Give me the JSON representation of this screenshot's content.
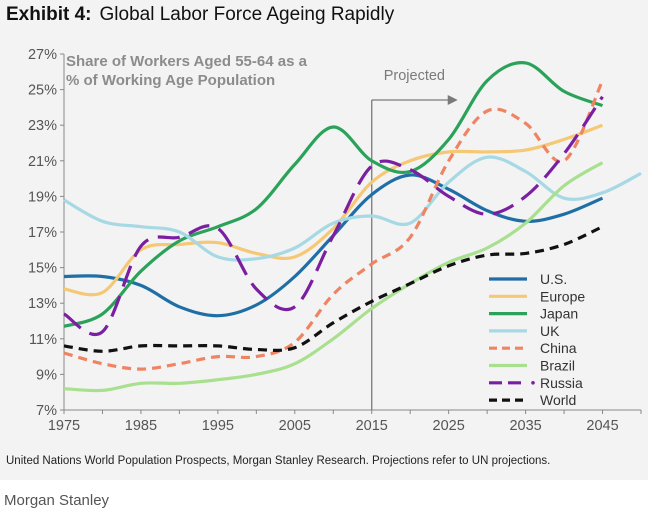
{
  "header": {
    "exhibit_label": "Exhibit 4:",
    "title": "Global Labor Force Ageing Rapidly"
  },
  "footnote": "United Nations World Population Prospects, Morgan Stanley Research. Projections refer to UN projections.",
  "brand": "Morgan Stanley",
  "chart_data": {
    "type": "line",
    "title": "",
    "subtitle": [
      "Share of Workers Aged 55-64 as a",
      "% of Working Age Population"
    ],
    "xlabel": "",
    "ylabel": "",
    "xlim": [
      1975,
      2050
    ],
    "ylim": [
      7,
      27
    ],
    "x_ticks": [
      1975,
      1985,
      1995,
      2005,
      2015,
      2025,
      2035,
      2045
    ],
    "y_ticks": [
      "7%",
      "9%",
      "11%",
      "13%",
      "15%",
      "17%",
      "19%",
      "21%",
      "23%",
      "25%",
      "27%"
    ],
    "y_tick_values": [
      7,
      9,
      11,
      13,
      15,
      17,
      19,
      21,
      23,
      25,
      27
    ],
    "grid": false,
    "legend_position": "bottom-right",
    "annotation": {
      "text": "Projected",
      "x": 2015
    },
    "series": [
      {
        "name": "U.S.",
        "color": "#1f6fa6",
        "dash": "solid",
        "x": [
          1975,
          1980,
          1985,
          1990,
          1995,
          2000,
          2005,
          2010,
          2015,
          2020,
          2025,
          2030,
          2035,
          2040,
          2045
        ],
        "values": [
          14.5,
          14.5,
          14.0,
          12.8,
          12.3,
          12.9,
          14.5,
          16.8,
          19.1,
          20.2,
          19.4,
          18.2,
          17.6,
          18.0,
          18.9
        ]
      },
      {
        "name": "Europe",
        "color": "#f5c875",
        "dash": "solid",
        "x": [
          1975,
          1980,
          1985,
          1990,
          1995,
          2000,
          2005,
          2010,
          2015,
          2020,
          2025,
          2030,
          2035,
          2040,
          2045
        ],
        "values": [
          13.8,
          13.6,
          16.0,
          16.3,
          16.4,
          15.8,
          15.6,
          17.2,
          19.8,
          21.0,
          21.5,
          21.5,
          21.6,
          22.2,
          23.0
        ]
      },
      {
        "name": "Japan",
        "color": "#2ba25a",
        "dash": "solid",
        "x": [
          1975,
          1980,
          1985,
          1990,
          1995,
          2000,
          2005,
          2010,
          2015,
          2020,
          2025,
          2030,
          2035,
          2040,
          2045
        ],
        "values": [
          11.7,
          12.4,
          14.8,
          16.5,
          17.3,
          18.3,
          20.8,
          22.9,
          21.0,
          20.4,
          22.2,
          25.5,
          26.5,
          24.9,
          24.1
        ]
      },
      {
        "name": "UK",
        "color": "#a6d9e4",
        "dash": "solid",
        "x": [
          1975,
          1980,
          1985,
          1990,
          1995,
          2000,
          2005,
          2010,
          2015,
          2020,
          2025,
          2030,
          2035,
          2040,
          2045,
          2050
        ],
        "values": [
          18.8,
          17.6,
          17.3,
          17.0,
          15.6,
          15.5,
          16.1,
          17.5,
          17.9,
          17.5,
          19.8,
          21.2,
          20.4,
          18.9,
          19.2,
          20.3
        ]
      },
      {
        "name": "China",
        "color": "#ef8463",
        "dash": "dash",
        "x": [
          1975,
          1980,
          1985,
          1990,
          1995,
          2000,
          2005,
          2010,
          2015,
          2020,
          2025,
          2030,
          2035,
          2040,
          2045
        ],
        "values": [
          10.2,
          9.6,
          9.3,
          9.6,
          10.0,
          10.0,
          10.8,
          13.5,
          15.2,
          16.7,
          21.0,
          23.8,
          23.1,
          21.0,
          25.5
        ]
      },
      {
        "name": "Brazil",
        "color": "#a9e08f",
        "dash": "solid",
        "x": [
          1975,
          1980,
          1985,
          1990,
          1995,
          2000,
          2005,
          2010,
          2015,
          2020,
          2025,
          2030,
          2035,
          2040,
          2045
        ],
        "values": [
          8.2,
          8.1,
          8.5,
          8.5,
          8.7,
          9.0,
          9.6,
          11.0,
          12.7,
          14.1,
          15.3,
          16.1,
          17.5,
          19.6,
          20.9
        ]
      },
      {
        "name": "Russia",
        "color": "#7b1fa2",
        "dash": "longdash",
        "x": [
          1975,
          1980,
          1985,
          1990,
          1995,
          2000,
          2005,
          2010,
          2015,
          2020,
          2025,
          2030,
          2035,
          2040,
          2045
        ],
        "values": [
          12.4,
          11.4,
          16.2,
          16.7,
          17.2,
          13.8,
          12.8,
          16.8,
          20.7,
          20.5,
          19.0,
          18.0,
          19.0,
          21.4,
          24.6
        ]
      },
      {
        "name": "World",
        "color": "#111111",
        "dash": "dash",
        "x": [
          1975,
          1980,
          1985,
          1990,
          1995,
          2000,
          2005,
          2010,
          2015,
          2020,
          2025,
          2030,
          2035,
          2040,
          2045
        ],
        "values": [
          10.6,
          10.3,
          10.6,
          10.6,
          10.6,
          10.4,
          10.5,
          11.9,
          13.1,
          14.1,
          15.1,
          15.7,
          15.8,
          16.3,
          17.3
        ]
      }
    ]
  }
}
